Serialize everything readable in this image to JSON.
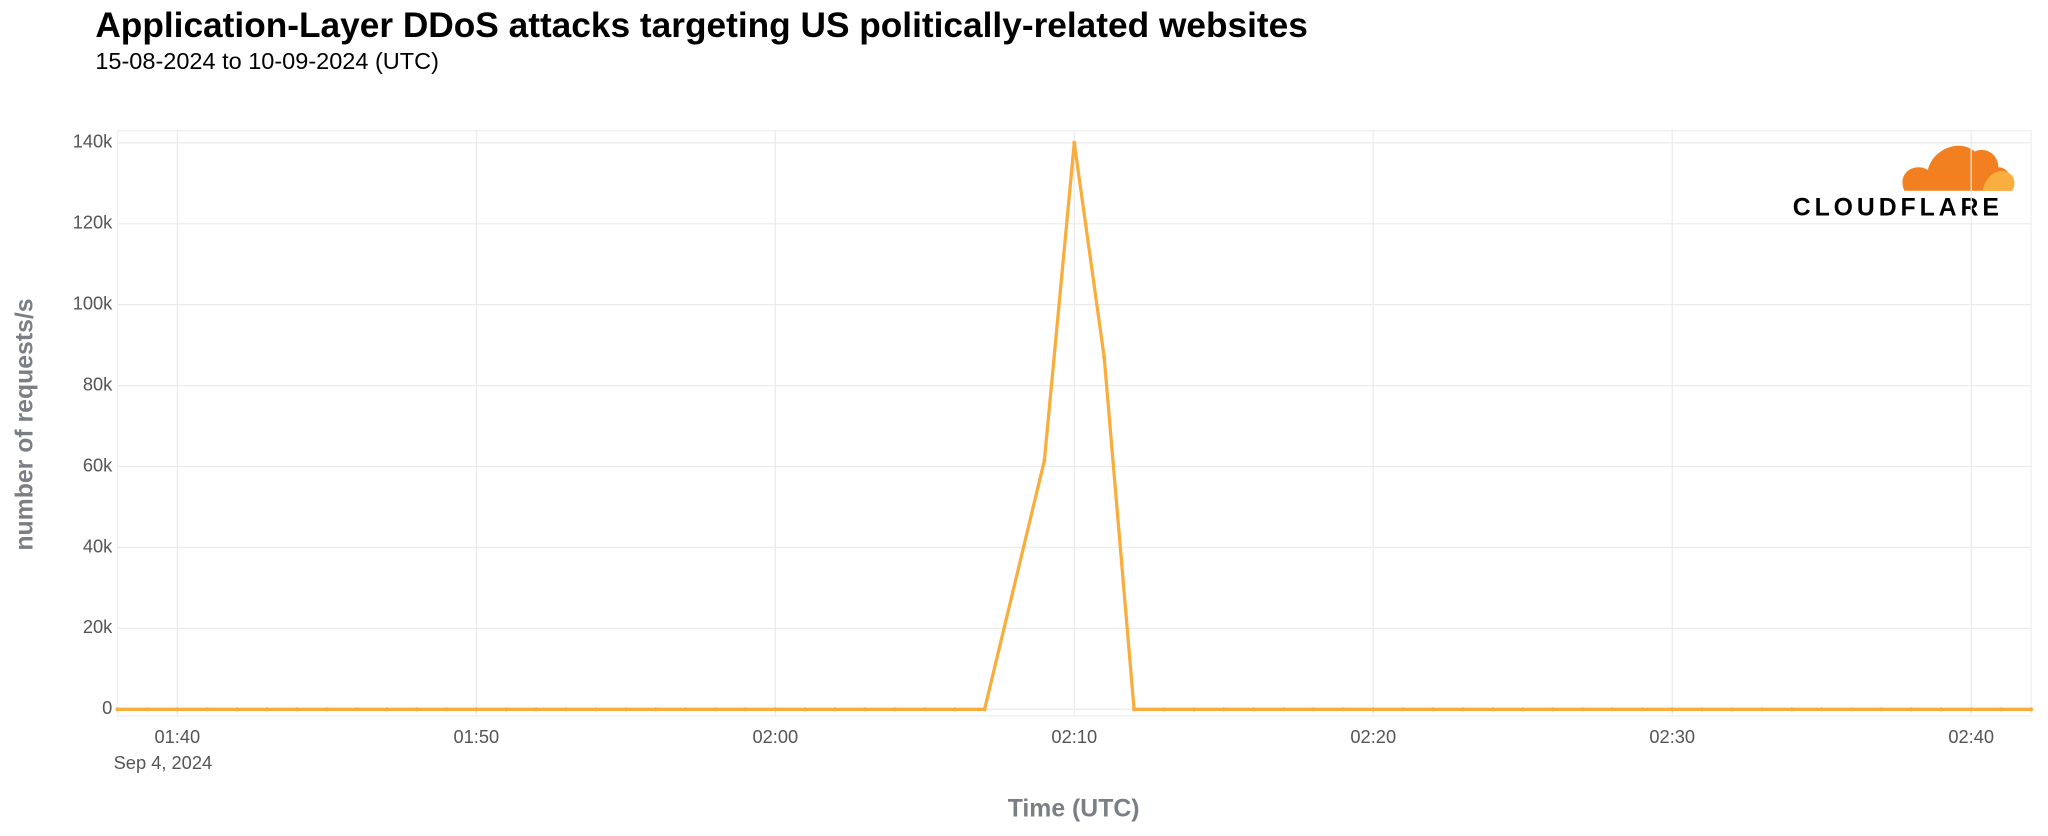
{
  "chart_data": {
    "type": "line",
    "title": "Application-Layer DDoS attacks targeting US politically-related websites",
    "subtitle": "15-08-2024 to 10-09-2024 (UTC)",
    "x_label": "Time (UTC)",
    "y_label": "number of requests/s",
    "x_date_label": "Sep 4, 2024",
    "logo_text": "CLOUDFLARE",
    "x": [
      "01:38",
      "01:39",
      "01:40",
      "01:41",
      "01:42",
      "01:43",
      "01:44",
      "01:45",
      "01:46",
      "01:47",
      "01:48",
      "01:49",
      "01:50",
      "01:51",
      "01:52",
      "01:53",
      "01:54",
      "01:55",
      "01:56",
      "01:57",
      "01:58",
      "01:59",
      "02:00",
      "02:01",
      "02:02",
      "02:03",
      "02:04",
      "02:05",
      "02:06",
      "02:07",
      "02:09",
      "02:10",
      "02:11",
      "02:12",
      "02:13",
      "02:14",
      "02:15",
      "02:16",
      "02:17",
      "02:18",
      "02:19",
      "02:20",
      "02:21",
      "02:22",
      "02:23",
      "02:24",
      "02:25",
      "02:26",
      "02:27",
      "02:28",
      "02:29",
      "02:30",
      "02:31",
      "02:32",
      "02:33",
      "02:34",
      "02:35",
      "02:36",
      "02:37",
      "02:38",
      "02:39",
      "02:40",
      "02:41",
      "02:42"
    ],
    "series": [
      {
        "name": "requests/s",
        "color": "#f9ad3d",
        "values": [
          0,
          0,
          0,
          0,
          0,
          0,
          0,
          0,
          0,
          0,
          0,
          0,
          0,
          0,
          0,
          0,
          0,
          0,
          0,
          0,
          0,
          0,
          0,
          0,
          0,
          0,
          0,
          0,
          0,
          0,
          61500,
          140000,
          87000,
          0,
          0,
          0,
          0,
          0,
          0,
          0,
          0,
          0,
          0,
          0,
          0,
          0,
          0,
          0,
          0,
          0,
          0,
          0,
          0,
          0,
          0,
          0,
          0,
          0,
          0,
          0,
          0,
          0,
          0,
          0
        ]
      }
    ],
    "xlim": [
      "01:38",
      "02:42"
    ],
    "xticks": [
      "01:40",
      "01:50",
      "02:00",
      "02:10",
      "02:20",
      "02:30",
      "02:40"
    ],
    "ylim": [
      -1600,
      143000
    ],
    "yticks": [
      0,
      {
        "value": 20000,
        "label": "20k"
      },
      {
        "value": 40000,
        "label": "40k"
      },
      {
        "value": 60000,
        "label": "60k"
      },
      {
        "value": 80000,
        "label": "80k"
      },
      {
        "value": 100000,
        "label": "100k"
      },
      {
        "value": 120000,
        "label": "120k"
      },
      {
        "value": 140000,
        "label": "140k"
      }
    ],
    "grid": true
  }
}
